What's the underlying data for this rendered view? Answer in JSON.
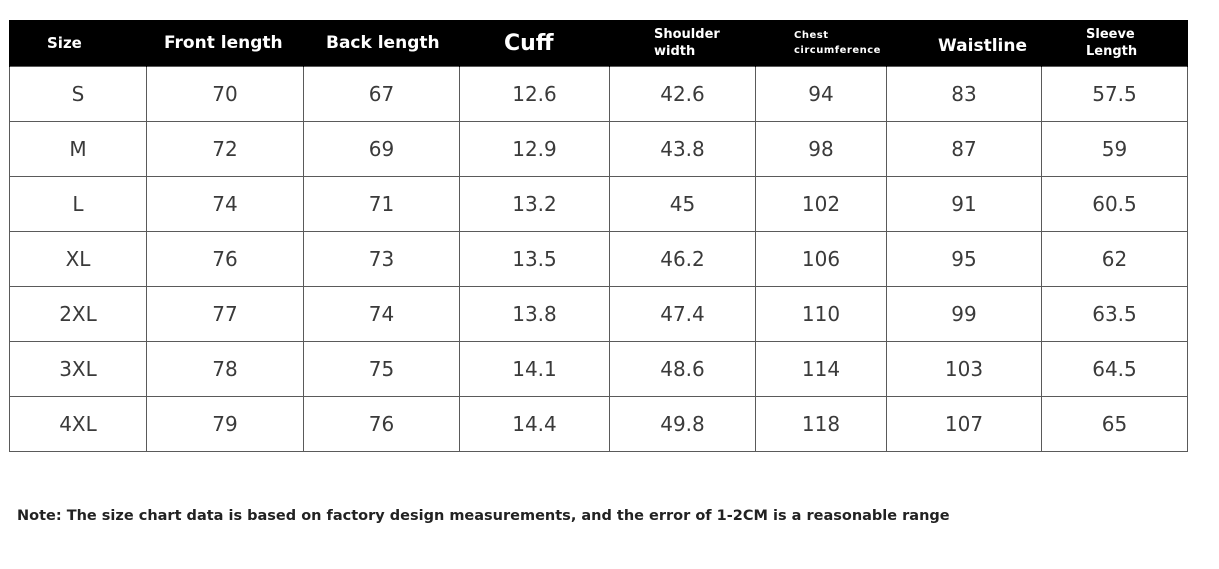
{
  "headers": {
    "size": "Size",
    "front_length": "Front length",
    "back_length": "Back length",
    "cuff": "Cuff",
    "shoulder_width_1": "Shoulder",
    "shoulder_width_2": "width",
    "chest_1": "Chest",
    "chest_2": "circumference",
    "waistline": "Waistline",
    "sleeve_1": "Sleeve",
    "sleeve_2": "Length"
  },
  "rows": [
    [
      "S",
      "70",
      "67",
      "12.6",
      "42.6",
      "94",
      "83",
      "57.5"
    ],
    [
      "M",
      "72",
      "69",
      "12.9",
      "43.8",
      "98",
      "87",
      "59"
    ],
    [
      "L",
      "74",
      "71",
      "13.2",
      "45",
      "102",
      "91",
      "60.5"
    ],
    [
      "XL",
      "76",
      "73",
      "13.5",
      "46.2",
      "106",
      "95",
      "62"
    ],
    [
      "2XL",
      "77",
      "74",
      "13.8",
      "47.4",
      "110",
      "99",
      "63.5"
    ],
    [
      "3XL",
      "78",
      "75",
      "14.1",
      "48.6",
      "114",
      "103",
      "64.5"
    ],
    [
      "4XL",
      "79",
      "76",
      "14.4",
      "49.8",
      "118",
      "107",
      "65"
    ]
  ],
  "note": "Note: The size chart data is based on factory design measurements, and the error of 1-2CM is a reasonable range",
  "colors": {
    "header_bg": "#000000",
    "header_text": "#ffffff",
    "cell_text": "#3a3a3a",
    "grid": "#5a5a5a"
  }
}
